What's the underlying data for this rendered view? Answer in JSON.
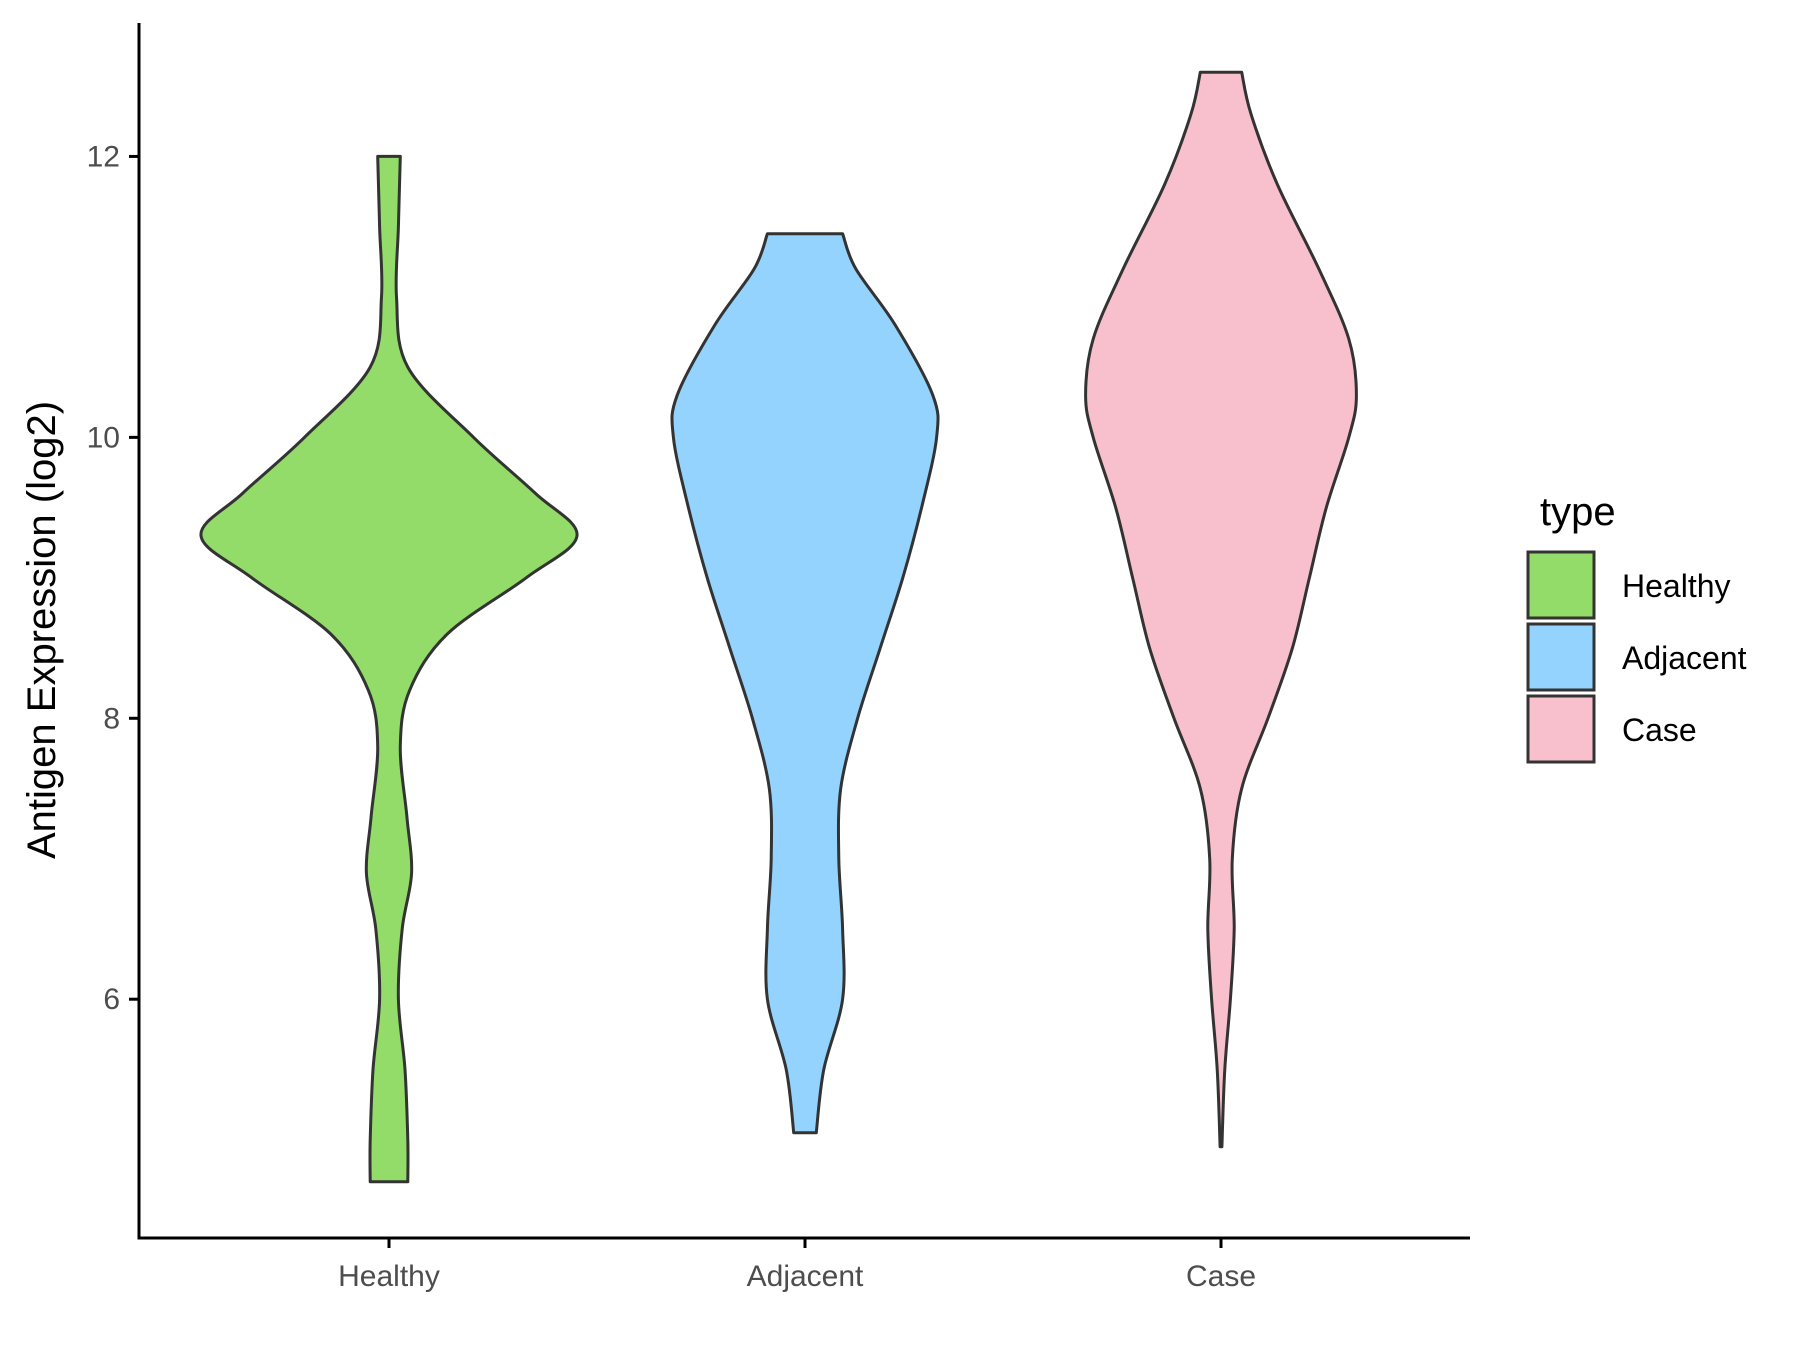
{
  "chart_data": {
    "type": "violin",
    "title": "",
    "xlabel": "",
    "ylabel": "Antigen Expression (log2)",
    "ylim": [
      4.3,
      12.95
    ],
    "yticks": [
      6,
      8,
      10,
      12
    ],
    "categories": [
      "Healthy",
      "Adjacent",
      "Case"
    ],
    "grid": false,
    "legend": {
      "title": "type",
      "position": "right",
      "entries": [
        {
          "label": "Healthy",
          "color": "#93DC6A"
        },
        {
          "label": "Adjacent",
          "color": "#93D3FE"
        },
        {
          "label": "Case",
          "color": "#F7C0CC"
        }
      ]
    },
    "series": [
      {
        "category": "Healthy",
        "color": "#93DC6A",
        "min": 4.7,
        "max": 12.0,
        "density_profile": [
          [
            4.7,
            0.1
          ],
          [
            5.0,
            0.1
          ],
          [
            5.5,
            0.085
          ],
          [
            6.0,
            0.05
          ],
          [
            6.5,
            0.07
          ],
          [
            6.9,
            0.12
          ],
          [
            7.3,
            0.095
          ],
          [
            7.8,
            0.06
          ],
          [
            8.2,
            0.11
          ],
          [
            8.6,
            0.31
          ],
          [
            9.0,
            0.73
          ],
          [
            9.3,
            1.0
          ],
          [
            9.6,
            0.78
          ],
          [
            10.0,
            0.45
          ],
          [
            10.5,
            0.1
          ],
          [
            11.0,
            0.04
          ],
          [
            11.5,
            0.05
          ],
          [
            12.0,
            0.06
          ]
        ]
      },
      {
        "category": "Adjacent",
        "color": "#93D3FE",
        "min": 5.05,
        "max": 11.45,
        "density_profile": [
          [
            5.05,
            0.06
          ],
          [
            5.5,
            0.1
          ],
          [
            6.0,
            0.2
          ],
          [
            6.5,
            0.2
          ],
          [
            7.0,
            0.18
          ],
          [
            7.5,
            0.19
          ],
          [
            8.0,
            0.28
          ],
          [
            8.5,
            0.4
          ],
          [
            9.0,
            0.52
          ],
          [
            9.5,
            0.62
          ],
          [
            10.0,
            0.7
          ],
          [
            10.3,
            0.68
          ],
          [
            10.8,
            0.48
          ],
          [
            11.2,
            0.27
          ],
          [
            11.45,
            0.2
          ]
        ]
      },
      {
        "category": "Case",
        "color": "#F7C0CC",
        "min": 4.95,
        "max": 12.6,
        "density_profile": [
          [
            4.95,
            0.005
          ],
          [
            5.5,
            0.02
          ],
          [
            6.0,
            0.05
          ],
          [
            6.5,
            0.07
          ],
          [
            7.0,
            0.06
          ],
          [
            7.5,
            0.11
          ],
          [
            8.0,
            0.25
          ],
          [
            8.5,
            0.38
          ],
          [
            9.0,
            0.47
          ],
          [
            9.5,
            0.56
          ],
          [
            10.0,
            0.68
          ],
          [
            10.3,
            0.72
          ],
          [
            10.7,
            0.68
          ],
          [
            11.2,
            0.52
          ],
          [
            11.8,
            0.3
          ],
          [
            12.3,
            0.16
          ],
          [
            12.6,
            0.11
          ]
        ]
      }
    ]
  }
}
